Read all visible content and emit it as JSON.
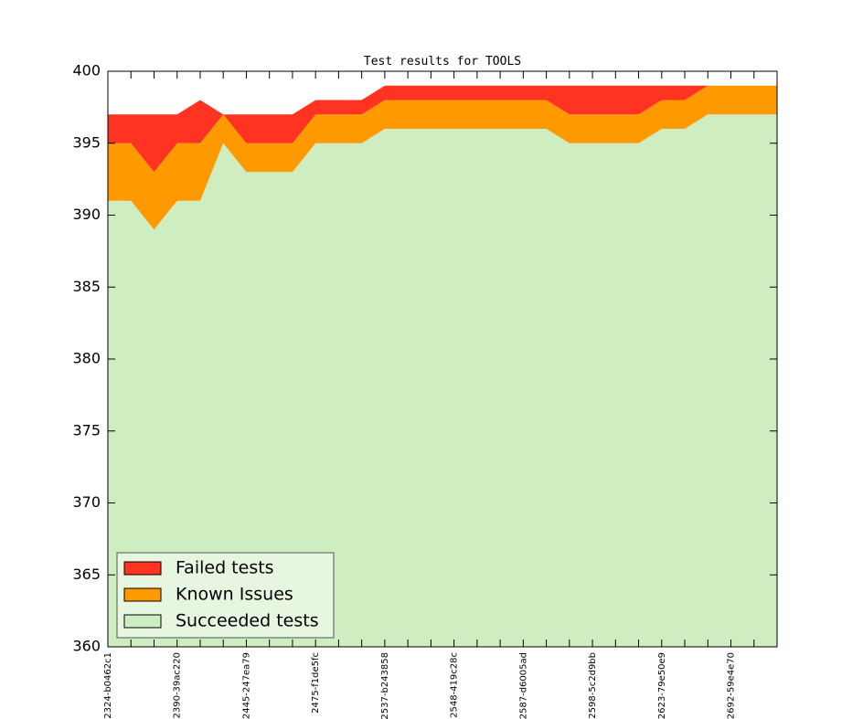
{
  "chart_data": {
    "type": "stacked-area",
    "title": "Test results for TOOLS",
    "categories": [
      "2324-b0462c1",
      null,
      null,
      "2390-39ac220",
      null,
      null,
      "2445-247ea79",
      null,
      null,
      "2475-f1de5fc",
      null,
      null,
      "2537-b243858",
      null,
      null,
      "2548-419c28c",
      null,
      null,
      "2587-d6005ad",
      null,
      null,
      "2598-5c2d9bb",
      null,
      null,
      "2623-79e50e9",
      null,
      null,
      "2692-59e4e70",
      null,
      null
    ],
    "series": [
      {
        "name": "Failed tests",
        "color": "#ff3322",
        "values": [
          2,
          2,
          4,
          2,
          3,
          0,
          2,
          2,
          2,
          1,
          1,
          1,
          1,
          1,
          1,
          1,
          1,
          1,
          1,
          1,
          2,
          2,
          2,
          2,
          1,
          1,
          0,
          0,
          0,
          0
        ]
      },
      {
        "name": "Known Issues",
        "color": "#ff9900",
        "values": [
          4,
          4,
          4,
          4,
          4,
          2,
          2,
          2,
          2,
          2,
          2,
          2,
          2,
          2,
          2,
          2,
          2,
          2,
          2,
          2,
          2,
          2,
          2,
          2,
          2,
          2,
          2,
          2,
          2,
          2
        ]
      },
      {
        "name": "Succeeded tests",
        "color": "#ceedc0",
        "values": [
          391,
          391,
          389,
          391,
          391,
          395,
          393,
          393,
          393,
          395,
          395,
          395,
          396,
          396,
          396,
          396,
          396,
          396,
          396,
          396,
          395,
          395,
          395,
          395,
          396,
          396,
          397,
          397,
          397,
          397
        ]
      }
    ],
    "ylim": [
      360,
      400
    ],
    "yticks": [
      360,
      365,
      370,
      375,
      380,
      385,
      390,
      395,
      400
    ],
    "legend": "lower left"
  }
}
